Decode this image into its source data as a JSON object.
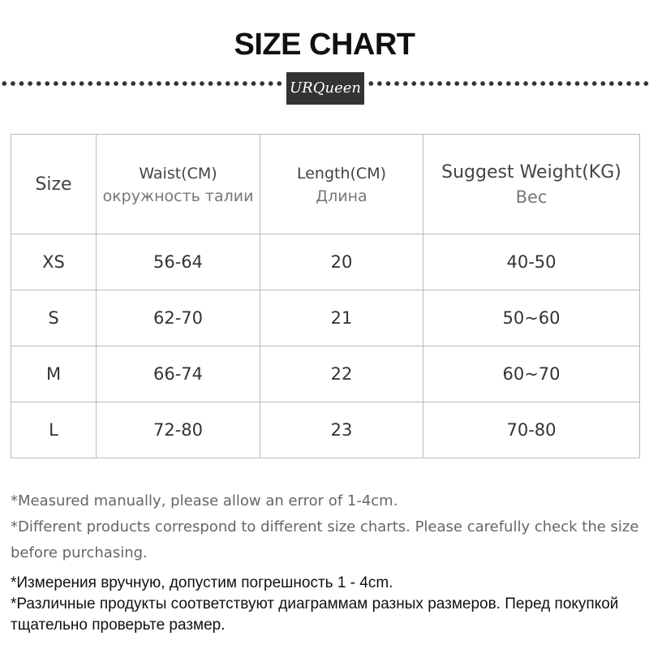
{
  "title": "SIZE CHART",
  "logo_text": "URQueen",
  "table": {
    "headers": [
      {
        "main": "Size",
        "sub": ""
      },
      {
        "main": "Waist(CM)",
        "sub": "окружность талии"
      },
      {
        "main": "Length(CM)",
        "sub": "Длина"
      },
      {
        "main": "Suggest Weight(KG)",
        "sub": "Вес"
      }
    ],
    "rows": [
      [
        "XS",
        "56-64",
        "20",
        "40-50"
      ],
      [
        "S",
        "62-70",
        "21",
        "50~60"
      ],
      [
        "M",
        "66-74",
        "22",
        "60~70"
      ],
      [
        "L",
        "72-80",
        "23",
        "70-80"
      ]
    ]
  },
  "notes_en": [
    "*Measured manually, please allow an error of 1-4cm.",
    "*Different products correspond to different size charts. Please carefully check the size before purchasing."
  ],
  "notes_ru": [
    "*Измерения вручную, допустим погрешность 1 - 4cm.",
    "*Различные продукты соответствуют диаграммам разных размеров. Перед покупкой тщательно проверьте размер."
  ]
}
